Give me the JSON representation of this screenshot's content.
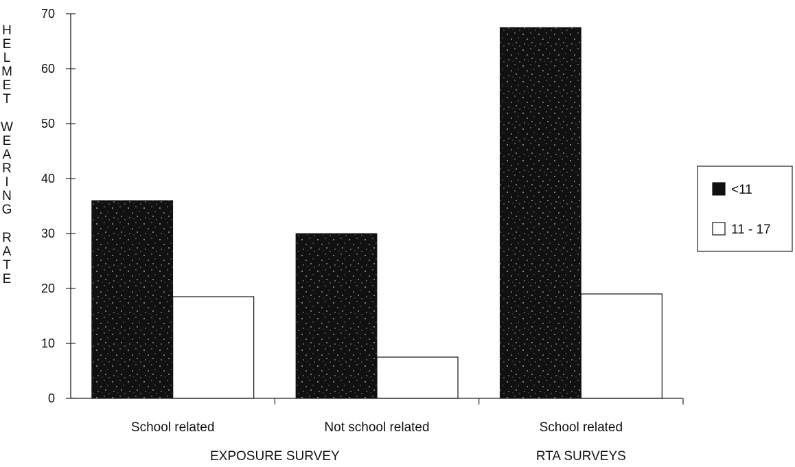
{
  "chart_data": {
    "type": "bar",
    "ylabel": "HELMET WEARING RATE",
    "ylim": [
      0,
      70
    ],
    "yticks": [
      0,
      10,
      20,
      30,
      40,
      50,
      60,
      70
    ],
    "categories": [
      "School related",
      "Not school related",
      "School related"
    ],
    "group_labels": [
      {
        "label": "EXPOSURE SURVEY",
        "categories": [
          0,
          1
        ]
      },
      {
        "label": "RTA SURVEYS",
        "categories": [
          2
        ]
      }
    ],
    "series": [
      {
        "name": "<11",
        "values": [
          36,
          30,
          67.5
        ],
        "color": "#111111",
        "fill": "speckled-black"
      },
      {
        "name": "11 - 17",
        "values": [
          18.5,
          7.5,
          19
        ],
        "color": "#ffffff",
        "fill": "white-outline"
      }
    ],
    "legend_position": "right",
    "grid": false
  }
}
